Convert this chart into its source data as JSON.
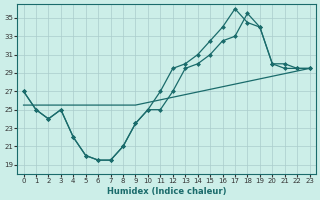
{
  "xlabel": "Humidex (Indice chaleur)",
  "bg_color": "#cceee8",
  "line_color": "#1a6b6b",
  "grid_color": "#aacccc",
  "yticks": [
    19,
    21,
    23,
    25,
    27,
    29,
    31,
    33,
    35
  ],
  "xticks": [
    0,
    1,
    2,
    3,
    4,
    5,
    6,
    7,
    8,
    9,
    10,
    11,
    12,
    13,
    14,
    15,
    16,
    17,
    18,
    19,
    20,
    21,
    22,
    23
  ],
  "xlim": [
    -0.5,
    23.5
  ],
  "ylim": [
    18.0,
    36.5
  ],
  "line1_x": [
    0,
    1,
    2,
    3,
    4,
    5,
    6,
    7,
    8,
    9,
    10,
    11,
    12,
    13,
    14,
    15,
    16,
    17,
    18,
    19,
    20,
    21,
    22,
    23
  ],
  "line1_y": [
    27,
    25,
    24,
    25,
    22,
    20,
    19.5,
    19.5,
    21,
    23.5,
    25,
    25,
    27,
    29.5,
    30,
    31,
    32.5,
    33,
    35.5,
    34,
    30,
    29.5,
    29.5,
    29.5
  ],
  "line2_x": [
    0,
    1,
    2,
    3,
    4,
    5,
    6,
    7,
    8,
    9,
    10,
    11,
    12,
    13,
    14,
    15,
    16,
    17,
    18,
    19,
    20,
    21,
    22,
    23
  ],
  "line2_y": [
    27,
    25,
    24,
    25,
    22,
    20,
    19.5,
    19.5,
    21,
    23.5,
    25,
    27,
    29.5,
    30,
    31,
    32.5,
    34,
    36,
    34.5,
    34,
    30,
    30,
    29.5,
    29.5
  ],
  "line3_x": [
    0,
    4,
    9,
    23
  ],
  "line3_y": [
    25.5,
    25.5,
    25.5,
    29.5
  ],
  "marker_size": 2.5,
  "line_width": 0.9
}
